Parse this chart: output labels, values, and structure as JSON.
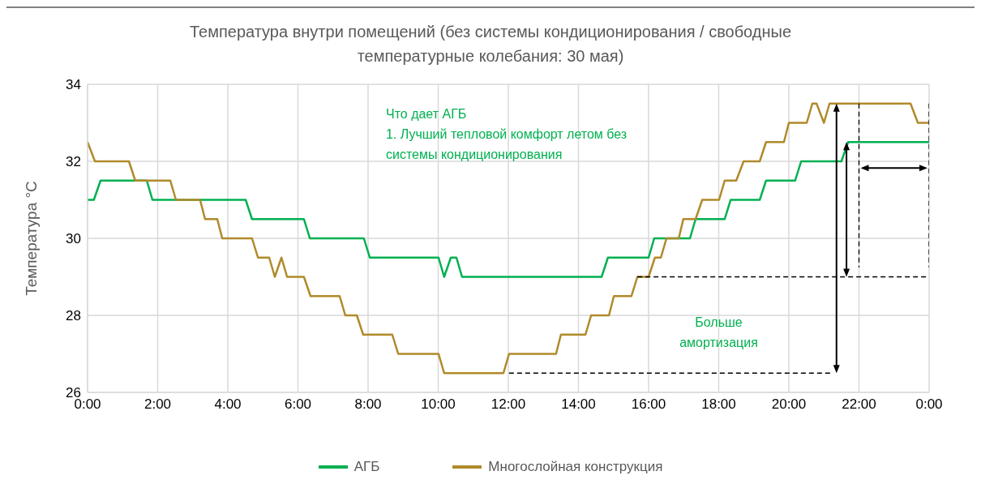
{
  "chart_data": {
    "type": "line",
    "title": "Температура внутри помещений (без системы кондиционирования / свободные температурные колебания: 30 мая)",
    "ylabel": "Температура °C",
    "xlim": [
      0,
      24
    ],
    "xticks": [
      {
        "value": 0,
        "label": "0:00"
      },
      {
        "value": 2,
        "label": "2:00"
      },
      {
        "value": 4,
        "label": "4:00"
      },
      {
        "value": 6,
        "label": "6:00"
      },
      {
        "value": 8,
        "label": "8:00"
      },
      {
        "value": 10,
        "label": "10:00"
      },
      {
        "value": 12,
        "label": "12:00"
      },
      {
        "value": 14,
        "label": "14:00"
      },
      {
        "value": 16,
        "label": "16:00"
      },
      {
        "value": 18,
        "label": "18:00"
      },
      {
        "value": 20,
        "label": "20:00"
      },
      {
        "value": 22,
        "label": "22:00"
      },
      {
        "value": 24,
        "label": "0:00"
      }
    ],
    "ylim": [
      26,
      34
    ],
    "yticks": [
      26,
      28,
      30,
      32,
      34
    ],
    "grid": true,
    "legend": "bottom",
    "marker": "none",
    "annotations": [
      "Что дает АГБ\n1. Лучший тепловой комфорт летом без\nсистемы кондиционирования",
      "Больше\nамортизация"
    ],
    "series": [
      {
        "name": "АГБ",
        "color": "#00b050",
        "line_style": "solid",
        "x": [
          0,
          0.18,
          0.37,
          1.69,
          1.85,
          4.51,
          4.69,
          6.17,
          6.34,
          7.88,
          8.05,
          10.01,
          10.17,
          10.36,
          10.52,
          10.68,
          14.66,
          14.84,
          16.0,
          16.16,
          17.18,
          17.34,
          18.17,
          18.34,
          19.17,
          19.35,
          20.18,
          20.35,
          21.5,
          21.69,
          24
        ],
        "values": [
          31,
          31,
          31.5,
          31.5,
          31,
          31,
          30.5,
          30.5,
          30,
          30,
          29.5,
          29.5,
          29,
          29.5,
          29.5,
          29,
          29,
          29.5,
          29.5,
          30,
          30,
          30.5,
          30.5,
          31,
          31,
          31.5,
          31.5,
          32,
          32,
          32.5,
          32.5
        ]
      },
      {
        "name": "Многослойная конструкция",
        "color": "#b08a2a",
        "line_style": "solid",
        "x": [
          0,
          0.21,
          1.18,
          1.36,
          2.36,
          2.52,
          3.21,
          3.35,
          3.7,
          3.84,
          4.69,
          4.86,
          5.18,
          5.34,
          5.53,
          5.69,
          6.17,
          6.36,
          7.19,
          7.35,
          7.68,
          7.86,
          8.69,
          8.86,
          10.01,
          10.17,
          11.86,
          12.02,
          13.36,
          13.5,
          14.2,
          14.36,
          14.87,
          15.01,
          15.51,
          15.68,
          16.0,
          16.18,
          16.35,
          16.51,
          16.86,
          16.99,
          17.34,
          17.53,
          18.01,
          18.17,
          18.5,
          18.71,
          19.17,
          19.35,
          19.86,
          20.0,
          20.51,
          20.67,
          20.79,
          21.0,
          21.16,
          23.47,
          23.68,
          24
        ],
        "values": [
          32.5,
          32,
          32,
          31.5,
          31.5,
          31,
          31,
          30.5,
          30.5,
          30,
          30,
          29.5,
          29.5,
          29,
          29.5,
          29,
          29,
          28.5,
          28.5,
          28,
          28,
          27.5,
          27.5,
          27,
          27,
          26.5,
          26.5,
          27,
          27,
          27.5,
          27.5,
          28,
          28,
          28.5,
          28.5,
          29,
          29,
          29.5,
          29.5,
          30,
          30,
          30.5,
          30.5,
          31,
          31,
          31.5,
          31.5,
          32,
          32,
          32.5,
          32.5,
          33,
          33,
          33.5,
          33.5,
          33,
          33.5,
          33.5,
          33,
          33
        ]
      },
      {
        "type": "line",
        "color": "#000000",
        "line_style": "dashed",
        "x": [
          12.02,
          21.22
        ],
        "values": [
          26.5,
          26.5
        ]
      },
      {
        "type": "line",
        "color": "#000000",
        "line_style": "dashed",
        "x": [
          15.68,
          24
        ],
        "values": [
          29,
          29
        ]
      },
      {
        "type": "line",
        "color": "#000000",
        "line_style": "dashed",
        "x": [
          22,
          22
        ],
        "values": [
          33.5,
          29.25
        ]
      },
      {
        "type": "line",
        "color": "#000000",
        "line_style": "dashed",
        "x": [
          24,
          24
        ],
        "values": [
          33.5,
          29.25
        ]
      }
    ]
  }
}
